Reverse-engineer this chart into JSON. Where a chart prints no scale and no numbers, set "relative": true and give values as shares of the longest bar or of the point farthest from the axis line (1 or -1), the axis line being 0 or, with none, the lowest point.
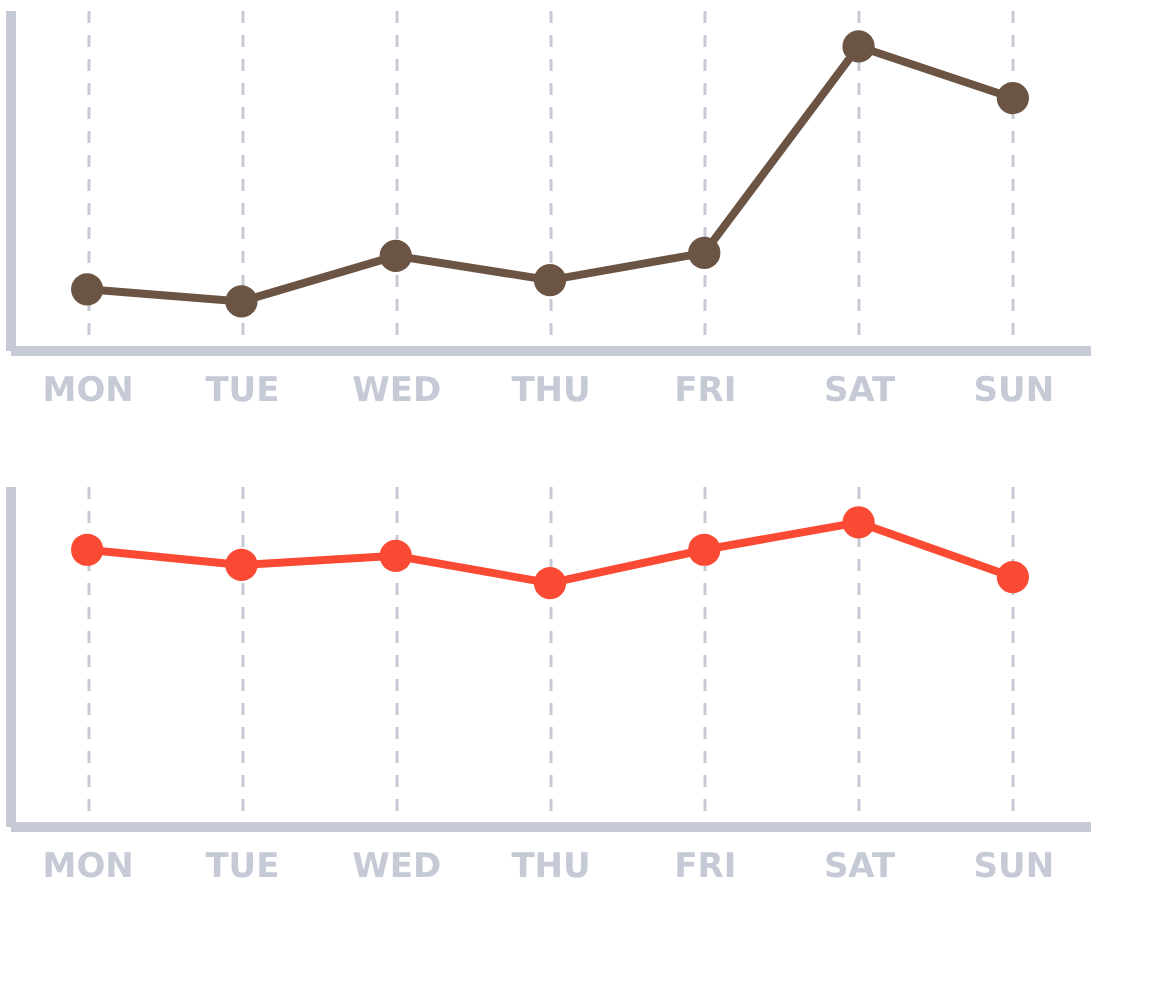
{
  "chart_data": [
    {
      "type": "line",
      "relative": true,
      "categories": [
        "MON",
        "TUE",
        "WED",
        "THU",
        "FRI",
        "SAT",
        "SUN"
      ],
      "grid": "x",
      "marker": "circle",
      "line_style": "solid",
      "series": [
        {
          "color": "#6b5444",
          "values": [
            0.2,
            0.16,
            0.31,
            0.23,
            0.32,
            1,
            0.83
          ]
        }
      ]
    },
    {
      "type": "line",
      "relative": true,
      "categories": [
        "MON",
        "TUE",
        "WED",
        "THU",
        "FRI",
        "SAT",
        "SUN"
      ],
      "grid": "x",
      "marker": "circle",
      "line_style": "solid",
      "series": [
        {
          "color": "#fb4a33",
          "values": [
            0.91,
            0.86,
            0.89,
            0.8,
            0.91,
            1,
            0.82
          ]
        }
      ]
    }
  ]
}
